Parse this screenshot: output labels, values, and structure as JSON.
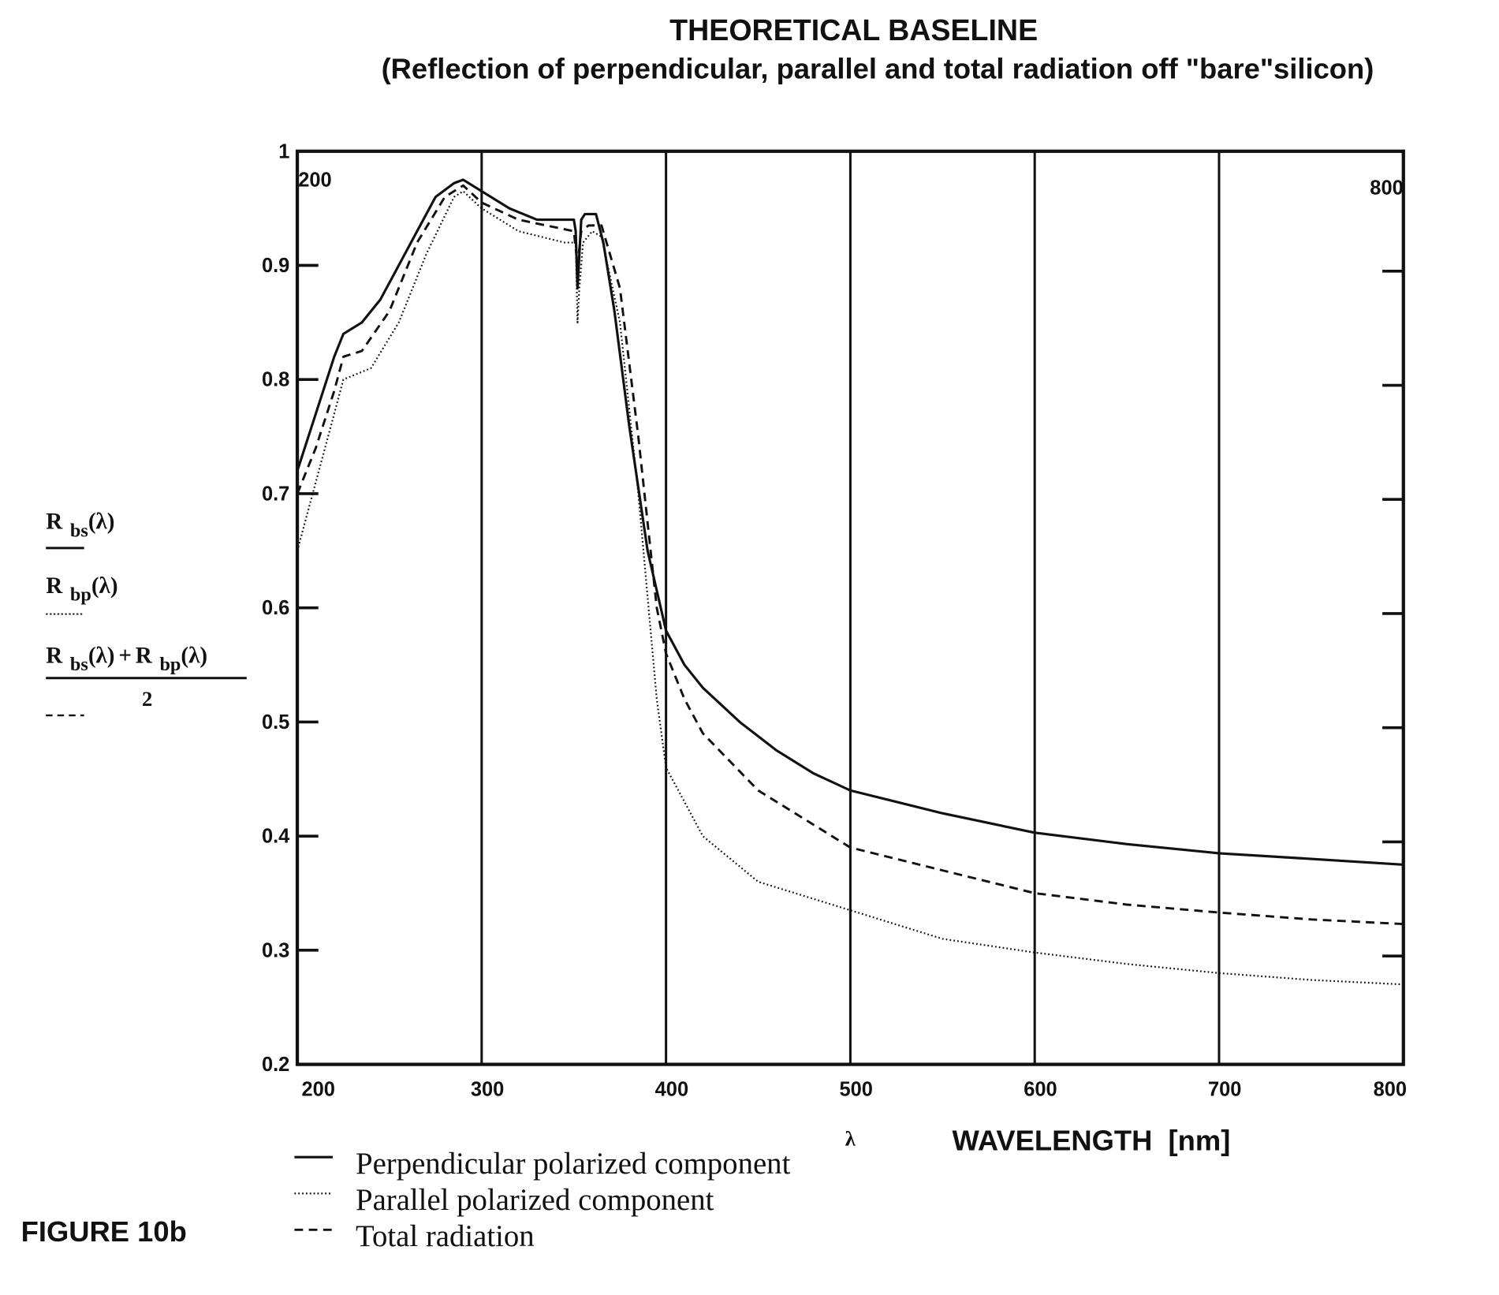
{
  "chart_data": {
    "type": "line",
    "title": "THEORETICAL BASELINE",
    "subtitle": "(Reflection of perpendicular, parallel and total radiation off \"bare\"silicon)",
    "xlabel": "WAVELENGTH  [nm]",
    "xsymbol": "λ",
    "ylabel_terms": {
      "rbs": {
        "main": "R",
        "sub": "bs",
        "arg": "(λ)"
      },
      "rbp": {
        "main": "R",
        "sub": "bp",
        "arg": "(λ)"
      },
      "avg_num": {
        "a": "R",
        "asub": "bs",
        "aarg": "(λ)",
        "plus": "+",
        "b": "R",
        "bsub": "bp",
        "barg": "(λ)"
      },
      "avg_den": "2"
    },
    "xlim": [
      200,
      800
    ],
    "ylim": [
      0.2,
      1
    ],
    "xticks": [
      "200",
      "300",
      "400",
      "500",
      "600",
      "700",
      "800"
    ],
    "yticks": [
      "1",
      "0.9",
      "0.8",
      "0.7",
      "0.6",
      "0.5",
      "0.4",
      "0.3",
      "0.2"
    ],
    "corner_labels": {
      "top_left": "200",
      "top_right": "800"
    },
    "grid": "vertical lines at 300-700",
    "legend_placement": "bottom-left",
    "series": [
      {
        "name": "Perpendicular polarized component",
        "style": "solid",
        "x": [
          200,
          210,
          220,
          225,
          235,
          245,
          255,
          265,
          275,
          285,
          290,
          300,
          315,
          330,
          350,
          351,
          352,
          354,
          356,
          362,
          366,
          372,
          380,
          390,
          400,
          410,
          420,
          440,
          460,
          480,
          500,
          550,
          600,
          650,
          700,
          750,
          800
        ],
        "y": [
          0.72,
          0.77,
          0.82,
          0.84,
          0.85,
          0.87,
          0.9,
          0.93,
          0.96,
          0.972,
          0.975,
          0.965,
          0.95,
          0.94,
          0.94,
          0.93,
          0.88,
          0.94,
          0.945,
          0.945,
          0.92,
          0.86,
          0.76,
          0.65,
          0.58,
          0.55,
          0.53,
          0.5,
          0.475,
          0.455,
          0.44,
          0.42,
          0.403,
          0.393,
          0.385,
          0.38,
          0.375
        ]
      },
      {
        "name": "Parallel polarized component",
        "style": "dotted",
        "x": [
          200,
          210,
          220,
          225,
          240,
          255,
          270,
          285,
          290,
          300,
          320,
          345,
          351,
          352,
          353,
          355,
          360,
          365,
          375,
          385,
          395,
          400,
          410,
          420,
          450,
          500,
          550,
          600,
          650,
          700,
          750,
          800
        ],
        "y": [
          0.65,
          0.71,
          0.77,
          0.8,
          0.81,
          0.85,
          0.91,
          0.96,
          0.965,
          0.95,
          0.93,
          0.92,
          0.92,
          0.85,
          0.88,
          0.92,
          0.93,
          0.925,
          0.85,
          0.7,
          0.52,
          0.46,
          0.43,
          0.4,
          0.36,
          0.335,
          0.31,
          0.298,
          0.288,
          0.28,
          0.274,
          0.27
        ]
      },
      {
        "name": "Total radiation",
        "style": "dashed",
        "x": [
          200,
          210,
          220,
          225,
          235,
          250,
          265,
          280,
          290,
          300,
          320,
          350,
          352,
          354,
          358,
          365,
          375,
          385,
          395,
          400,
          410,
          420,
          450,
          500,
          550,
          600,
          650,
          700,
          750,
          800
        ],
        "y": [
          0.7,
          0.74,
          0.79,
          0.82,
          0.825,
          0.86,
          0.92,
          0.96,
          0.97,
          0.955,
          0.94,
          0.93,
          0.9,
          0.93,
          0.935,
          0.935,
          0.88,
          0.75,
          0.6,
          0.56,
          0.52,
          0.49,
          0.44,
          0.39,
          0.37,
          0.35,
          0.34,
          0.333,
          0.327,
          0.323
        ]
      }
    ]
  },
  "figure_label": "FIGURE 10b"
}
